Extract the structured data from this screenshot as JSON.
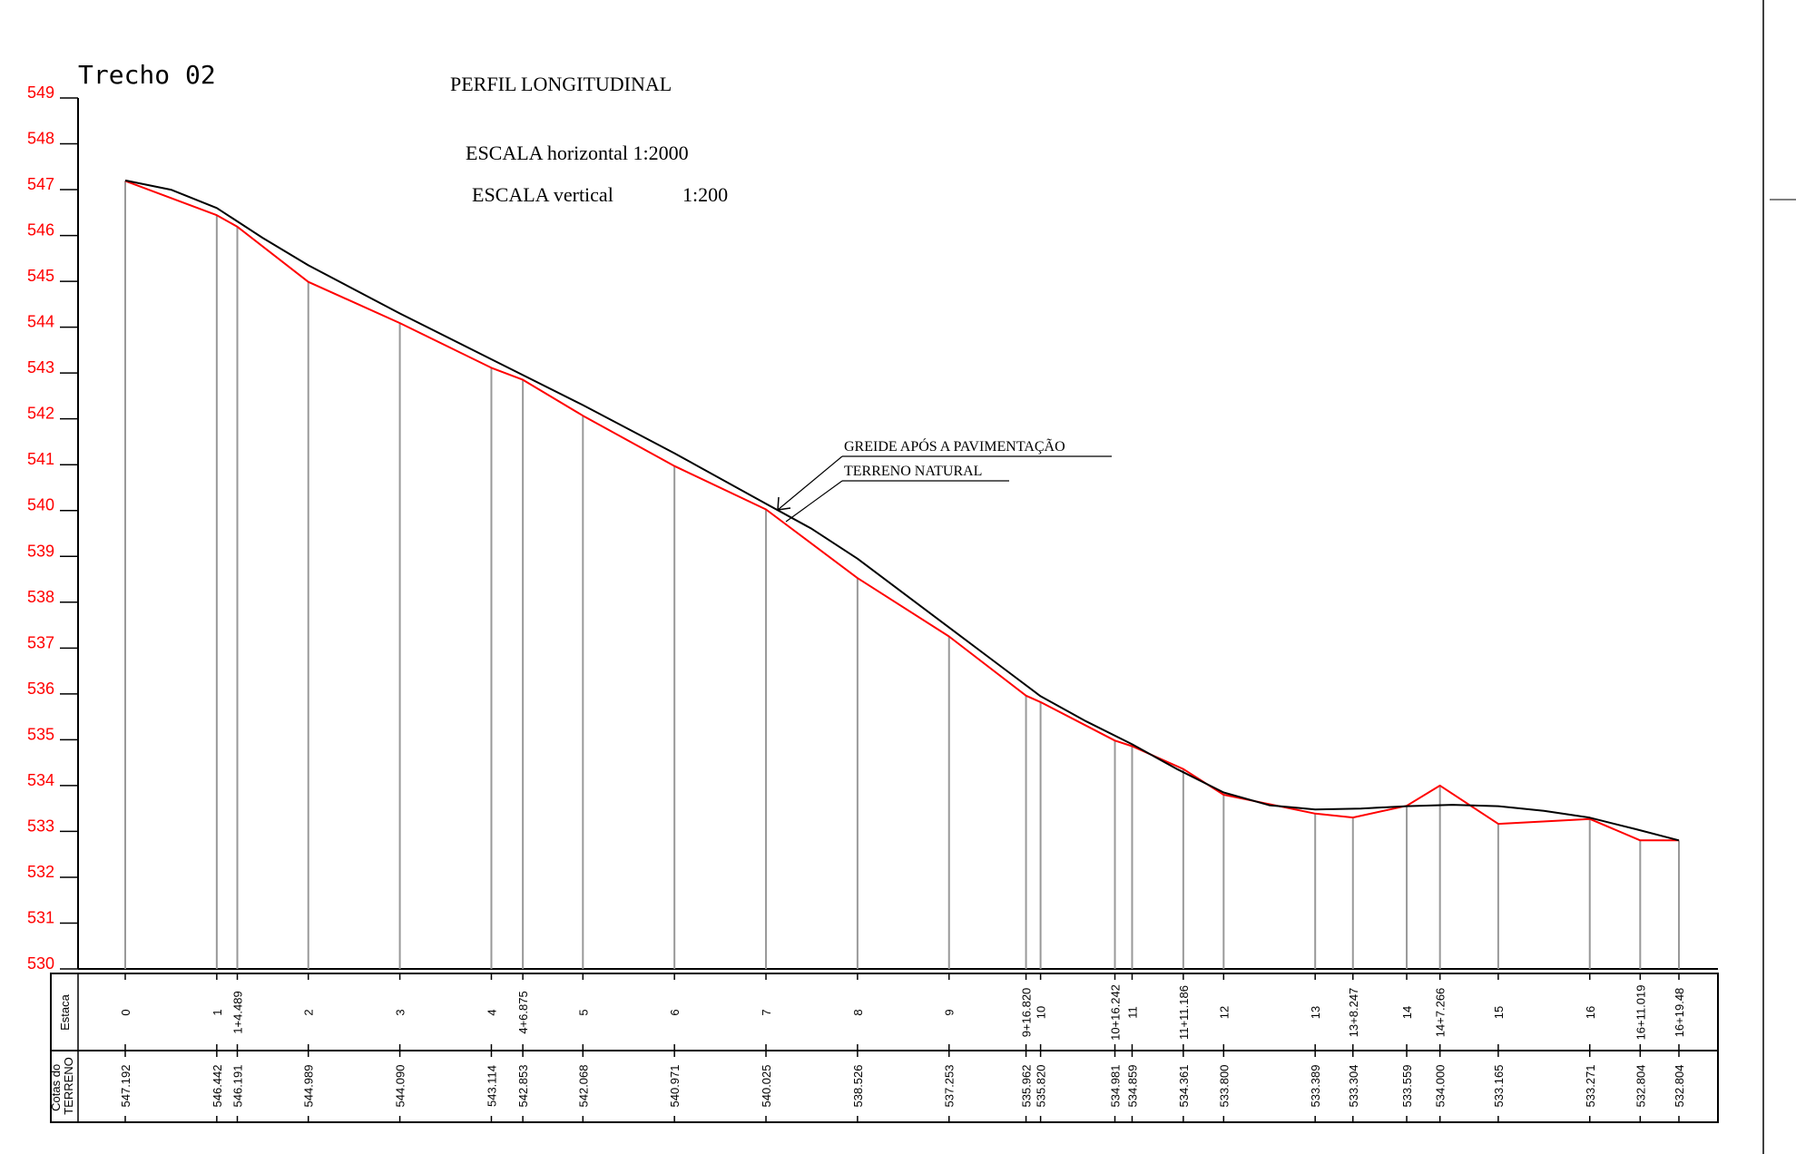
{
  "chart_data": {
    "type": "line",
    "trecho_label": "Trecho 02",
    "title": "PERFIL LONGITUDINAL",
    "scale_horizontal": "ESCALA horizontal 1:2000",
    "scale_vertical_label": "ESCALA vertical",
    "scale_vertical_value": "1:200",
    "ylim": [
      530,
      549
    ],
    "yticks": [
      "530",
      "531",
      "532",
      "533",
      "534",
      "535",
      "536",
      "537",
      "538",
      "539",
      "540",
      "541",
      "542",
      "543",
      "544",
      "545",
      "546",
      "547",
      "548",
      "549"
    ],
    "table_row_estaca": "Estaca",
    "table_row_cotas": "Cotas do TERRENO",
    "legend": {
      "greide": "GREIDE APÓS A PAVIMENTAÇÃO",
      "terreno": "TERRENO NATURAL"
    },
    "stations": [
      {
        "estaca": "0",
        "dist": 0,
        "cota": "547.192"
      },
      {
        "estaca": "1",
        "dist": 20,
        "cota": "546.442"
      },
      {
        "estaca": "1+4.489",
        "dist": 24.489,
        "cota": "546.191"
      },
      {
        "estaca": "2",
        "dist": 40,
        "cota": "544.989"
      },
      {
        "estaca": "3",
        "dist": 60,
        "cota": "544.090"
      },
      {
        "estaca": "4",
        "dist": 80,
        "cota": "543.114"
      },
      {
        "estaca": "4+6.875",
        "dist": 86.875,
        "cota": "542.853"
      },
      {
        "estaca": "5",
        "dist": 100,
        "cota": "542.068"
      },
      {
        "estaca": "6",
        "dist": 120,
        "cota": "540.971"
      },
      {
        "estaca": "7",
        "dist": 140,
        "cota": "540.025"
      },
      {
        "estaca": "8",
        "dist": 160,
        "cota": "538.526"
      },
      {
        "estaca": "9",
        "dist": 180,
        "cota": "537.253"
      },
      {
        "estaca": "9+16.820",
        "dist": 196.82,
        "cota": "535.962"
      },
      {
        "estaca": "10",
        "dist": 200,
        "cota": "535.820"
      },
      {
        "estaca": "10+16.242",
        "dist": 216.242,
        "cota": "534.981"
      },
      {
        "estaca": "11",
        "dist": 220,
        "cota": "534.859"
      },
      {
        "estaca": "11+11.186",
        "dist": 231.186,
        "cota": "534.361"
      },
      {
        "estaca": "12",
        "dist": 240,
        "cota": "533.800"
      },
      {
        "estaca": "13",
        "dist": 260,
        "cota": "533.389"
      },
      {
        "estaca": "13+8.247",
        "dist": 268.247,
        "cota": "533.304"
      },
      {
        "estaca": "14",
        "dist": 280,
        "cota": "533.559"
      },
      {
        "estaca": "14+7.266",
        "dist": 287.266,
        "cota": "534.000"
      },
      {
        "estaca": "15",
        "dist": 300,
        "cota": "533.165"
      },
      {
        "estaca": "16",
        "dist": 320,
        "cota": "533.271"
      },
      {
        "estaca": "16+11.019",
        "dist": 331.019,
        "cota": "532.804"
      },
      {
        "estaca": "16+19.48",
        "dist": 339.48,
        "cota": "532.804"
      }
    ],
    "series": [
      {
        "name": "TERRENO NATURAL",
        "color": "#ff0000",
        "x": [
          0,
          20,
          24.489,
          40,
          60,
          80,
          86.875,
          100,
          120,
          140,
          160,
          180,
          196.82,
          200,
          216.242,
          220,
          231.186,
          240,
          260,
          268.247,
          280,
          287.266,
          300,
          320,
          331.019,
          339.48
        ],
        "y": [
          547.192,
          546.442,
          546.191,
          544.989,
          544.09,
          543.114,
          542.853,
          542.068,
          540.971,
          540.025,
          538.526,
          537.253,
          535.962,
          535.82,
          534.981,
          534.859,
          534.361,
          533.8,
          533.389,
          533.304,
          533.559,
          534.0,
          533.165,
          533.271,
          532.804,
          532.804
        ]
      },
      {
        "name": "GREIDE APÓS A PAVIMENTAÇÃO",
        "color": "#000000",
        "x": [
          0,
          10,
          20,
          30,
          40,
          60,
          80,
          100,
          120,
          140,
          150,
          160,
          170,
          180,
          190,
          200,
          210,
          220,
          230,
          240,
          250,
          260,
          270,
          280,
          290,
          300,
          310,
          320,
          330,
          339.48
        ],
        "y": [
          547.2,
          547.0,
          546.6,
          545.95,
          545.35,
          544.3,
          543.3,
          542.3,
          541.25,
          540.15,
          539.6,
          538.95,
          538.2,
          537.45,
          536.7,
          535.95,
          535.4,
          534.9,
          534.35,
          533.85,
          533.57,
          533.48,
          533.5,
          533.55,
          533.58,
          533.55,
          533.45,
          533.3,
          533.05,
          532.804
        ]
      }
    ]
  }
}
